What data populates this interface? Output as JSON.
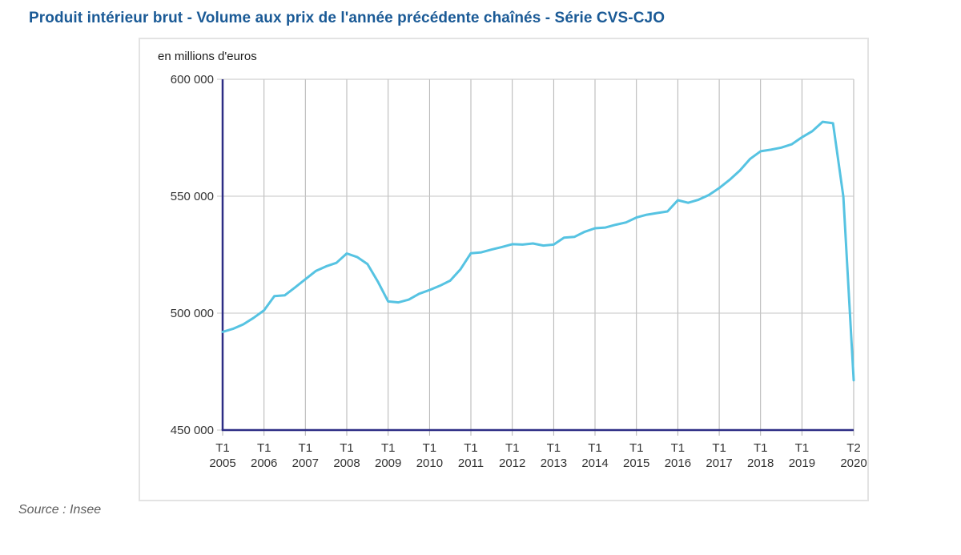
{
  "title": "Produit intérieur brut - Volume aux prix de l'année précédente chaînés - Série CVS-CJO",
  "source": "Source : Insee",
  "chart_data": {
    "type": "line",
    "title": "Produit intérieur brut - Volume aux prix de l'année précédente chaînés - Série CVS-CJO",
    "unit_label": "en millions d'euros",
    "frequency": "quarterly",
    "x_start": "T1 2005",
    "x_end": "T2 2020",
    "n_points": 62,
    "ylim": [
      450000,
      600000
    ],
    "grid": true,
    "legend_position": "none",
    "y_ticks": [
      {
        "value": 600000,
        "label": "600 000"
      },
      {
        "value": 550000,
        "label": "550 000"
      },
      {
        "value": 500000,
        "label": "500 000"
      },
      {
        "value": 450000,
        "label": "450 000"
      }
    ],
    "x_ticks": [
      {
        "index": 0,
        "period": "T1",
        "year": "2005"
      },
      {
        "index": 4,
        "period": "T1",
        "year": "2006"
      },
      {
        "index": 8,
        "period": "T1",
        "year": "2007"
      },
      {
        "index": 12,
        "period": "T1",
        "year": "2008"
      },
      {
        "index": 16,
        "period": "T1",
        "year": "2009"
      },
      {
        "index": 20,
        "period": "T1",
        "year": "2010"
      },
      {
        "index": 24,
        "period": "T1",
        "year": "2011"
      },
      {
        "index": 28,
        "period": "T1",
        "year": "2012"
      },
      {
        "index": 32,
        "period": "T1",
        "year": "2013"
      },
      {
        "index": 36,
        "period": "T1",
        "year": "2014"
      },
      {
        "index": 40,
        "period": "T1",
        "year": "2015"
      },
      {
        "index": 44,
        "period": "T1",
        "year": "2016"
      },
      {
        "index": 48,
        "period": "T1",
        "year": "2017"
      },
      {
        "index": 52,
        "period": "T1",
        "year": "2018"
      },
      {
        "index": 56,
        "period": "T1",
        "year": "2019"
      },
      {
        "index": 61,
        "period": "T2",
        "year": "2020"
      }
    ],
    "series": [
      {
        "name": "Produit intérieur brut (volume, CVS-CJO)",
        "values": [
          492000,
          493300,
          495200,
          498000,
          501200,
          507300,
          507600,
          511000,
          514500,
          518000,
          520000,
          521500,
          525500,
          524000,
          521000,
          513500,
          505000,
          504600,
          505800,
          508300,
          509900,
          511700,
          513900,
          518800,
          525600,
          526000,
          527200,
          528300,
          529500,
          529300,
          529800,
          528900,
          529300,
          532300,
          532600,
          534800,
          536300,
          536600,
          537800,
          538800,
          540900,
          542100,
          542800,
          543500,
          548300,
          547200,
          548500,
          550500,
          553500,
          557000,
          561000,
          566000,
          569200,
          569900,
          570800,
          572200,
          575200,
          577800,
          581800,
          581200,
          549800,
          471300
        ]
      }
    ],
    "colors": {
      "line": "#56c3e2",
      "axis": "#2d2d85",
      "grid_v": "#b3b3b3",
      "grid_h": "#c6c6c6",
      "title": "#1a5a96"
    }
  }
}
